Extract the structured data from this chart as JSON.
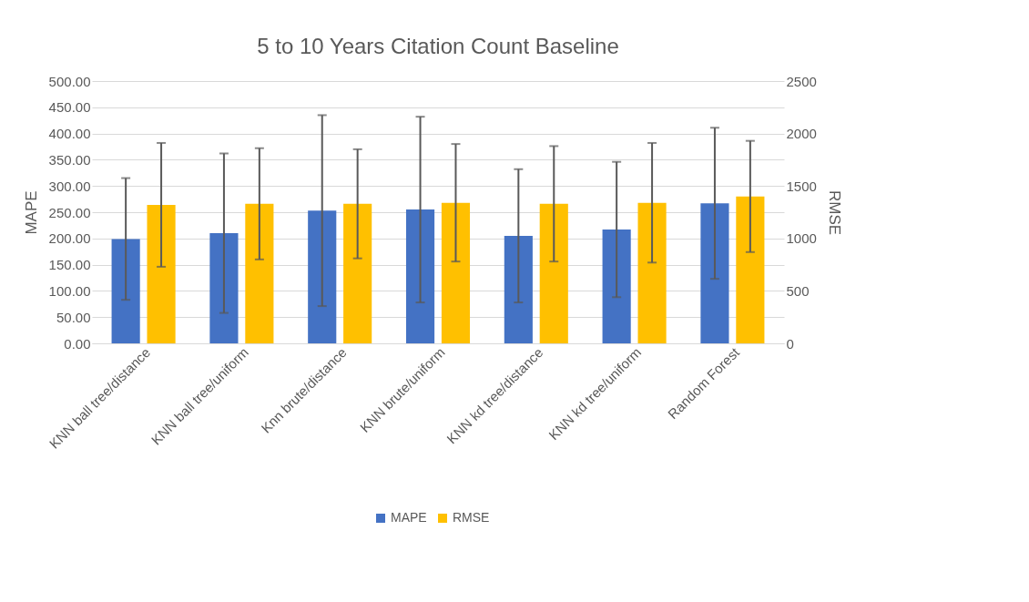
{
  "chart_data": {
    "type": "bar",
    "title": "5 to 10 Years Citation Count Baseline",
    "categories": [
      "KNN ball tree/distance",
      "KNN ball tree/uniform",
      "Knn brute/distance",
      "KNN brute/uniform",
      "KNN kd tree/distance",
      "KNN kd tree/uniform",
      "Random Forest"
    ],
    "series": [
      {
        "name": "MAPE",
        "color": "#4472c4",
        "values": [
          199,
          210,
          253,
          255,
          205,
          217,
          267
        ],
        "errors": [
          116,
          152,
          182,
          177,
          127,
          129,
          144
        ]
      },
      {
        "name": "RMSE",
        "color": "#ffc000",
        "axis": "y2",
        "values": [
          1320,
          1330,
          1330,
          1340,
          1330,
          1340,
          1400
        ],
        "errors": [
          590,
          530,
          520,
          560,
          550,
          570,
          530
        ]
      }
    ],
    "ylabel": "MAPE",
    "y2label": "RMSE",
    "ylim": [
      0,
      500
    ],
    "yticks": [
      {
        "value": 0,
        "label": "0.00"
      },
      {
        "value": 50,
        "label": "50.00"
      },
      {
        "value": 100,
        "label": "100.00"
      },
      {
        "value": 150,
        "label": "150.00"
      },
      {
        "value": 200,
        "label": "200.00"
      },
      {
        "value": 250,
        "label": "250.00"
      },
      {
        "value": 300,
        "label": "300.00"
      },
      {
        "value": 350,
        "label": "350.00"
      },
      {
        "value": 400,
        "label": "400.00"
      },
      {
        "value": 450,
        "label": "450.00"
      },
      {
        "value": 500,
        "label": "500.00"
      }
    ],
    "y2lim": [
      0,
      2500
    ],
    "y2ticks": [
      0,
      500,
      1000,
      1500,
      2000,
      2500
    ],
    "grid": "y",
    "legend": "bottom"
  }
}
